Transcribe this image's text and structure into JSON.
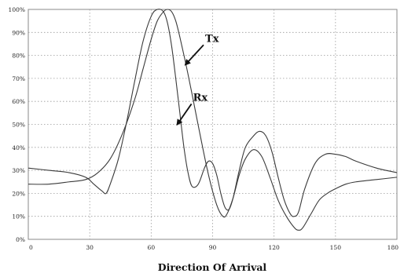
{
  "chart_data": {
    "type": "line",
    "title": "",
    "xlabel": "Direction Of Arrival",
    "ylabel": "",
    "xlim": [
      0,
      180
    ],
    "ylim": [
      0,
      100
    ],
    "grid": true,
    "x_ticks": [
      "0",
      "30",
      "60",
      "90",
      "120",
      "150",
      "180"
    ],
    "y_ticks": [
      "0%",
      "10%",
      "20%",
      "30%",
      "40%",
      "50%",
      "60%",
      "70%",
      "80%",
      "90%",
      "100%"
    ],
    "annotations": [
      {
        "text": "Tx",
        "points_to_series": "Tx",
        "at": [
          76,
          75
        ]
      },
      {
        "text": "Rx",
        "points_to_series": "Rx",
        "at": [
          72,
          49
        ]
      }
    ],
    "series": [
      {
        "name": "Tx",
        "x": [
          0,
          10,
          20,
          28,
          34,
          40,
          46,
          52,
          56,
          60,
          63,
          66,
          68,
          70,
          72,
          74,
          77,
          80,
          84,
          88,
          92,
          95,
          97,
          100,
          103,
          106,
          110,
          114,
          118,
          122,
          126,
          130,
          132,
          134,
          138,
          142,
          146,
          150,
          155,
          160,
          170,
          180
        ],
        "y": [
          24,
          24,
          25,
          26,
          29,
          35,
          46,
          61,
          74,
          87,
          95,
          99,
          100,
          99,
          95,
          88,
          76,
          63,
          45,
          28,
          15,
          10,
          11,
          18,
          28,
          35,
          39,
          36,
          27,
          17,
          10,
          5,
          4,
          5,
          11,
          17,
          20,
          22,
          24,
          25,
          26,
          27
        ]
      },
      {
        "name": "Rx",
        "x": [
          0,
          10,
          20,
          28,
          32,
          36,
          38,
          40,
          44,
          48,
          52,
          56,
          60,
          63,
          66,
          68,
          70,
          72,
          74,
          76,
          78,
          80,
          83,
          86,
          88,
          90,
          92,
          94,
          96,
          98,
          100,
          103,
          106,
          110,
          113,
          116,
          119,
          122,
          125,
          128,
          130,
          132,
          135,
          140,
          145,
          150,
          155,
          160,
          170,
          180
        ],
        "y": [
          31,
          30,
          29,
          27,
          24,
          21,
          20,
          24,
          35,
          51,
          69,
          86,
          97,
          100,
          99,
          94,
          84,
          70,
          55,
          40,
          29,
          23,
          24,
          31,
          34,
          33,
          28,
          20,
          14,
          13,
          18,
          30,
          40,
          45,
          47,
          45,
          38,
          27,
          17,
          11,
          10,
          12,
          22,
          33,
          37,
          37,
          36,
          34,
          31,
          29
        ]
      }
    ]
  }
}
